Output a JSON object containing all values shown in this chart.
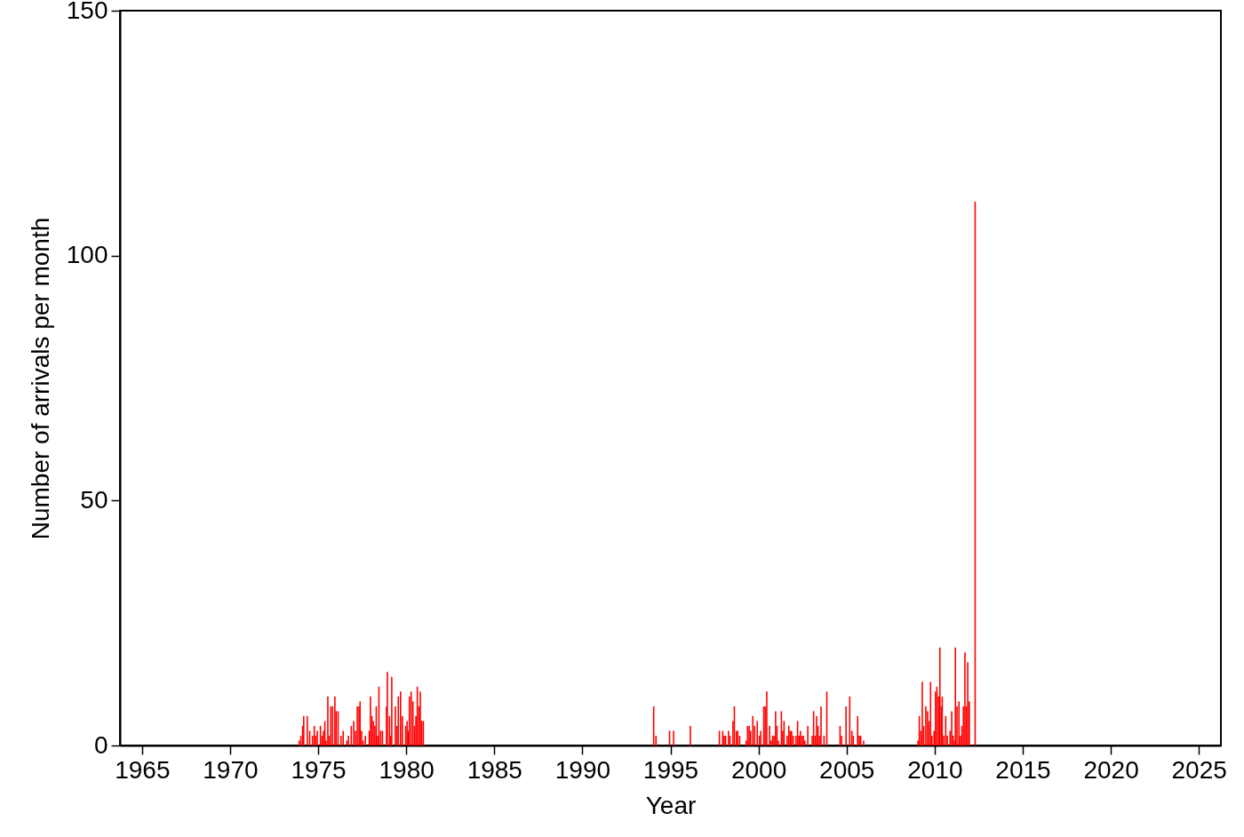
{
  "chart_data": {
    "type": "bar",
    "xlabel": "Year",
    "ylabel": "Number of arrivals per month",
    "xlim": [
      1964,
      2026
    ],
    "xticks": [
      1965,
      1970,
      1975,
      1980,
      1985,
      1990,
      1995,
      2000,
      2005,
      2010,
      2015,
      2020,
      2025
    ],
    "ylim": [
      0,
      150
    ],
    "yticks": [
      0,
      50,
      100,
      150
    ],
    "grid": false,
    "series": [
      {
        "color": "#ff0000",
        "x": [
          1973.92,
          1974.02,
          1974.12,
          1974.18,
          1974.38,
          1974.52,
          1974.68,
          1974.78,
          1974.85,
          1974.95,
          1975.13,
          1975.22,
          1975.3,
          1975.38,
          1975.45,
          1975.55,
          1975.63,
          1975.72,
          1975.82,
          1975.95,
          1976.02,
          1976.13,
          1976.3,
          1976.42,
          1976.63,
          1976.72,
          1976.88,
          1977.02,
          1977.12,
          1977.22,
          1977.32,
          1977.38,
          1977.47,
          1977.55,
          1977.68,
          1977.9,
          1977.97,
          1978.05,
          1978.13,
          1978.22,
          1978.3,
          1978.38,
          1978.45,
          1978.55,
          1978.65,
          1978.88,
          1978.93,
          1979.05,
          1979.12,
          1979.18,
          1979.38,
          1979.47,
          1979.55,
          1979.68,
          1979.78,
          1979.97,
          1980.05,
          1980.13,
          1980.18,
          1980.28,
          1980.38,
          1980.47,
          1980.55,
          1980.63,
          1980.72,
          1980.8,
          1980.88,
          1980.97,
          1994.05,
          1994.18,
          1994.95,
          1995.18,
          1996.13,
          1997.78,
          1997.97,
          1998.05,
          1998.13,
          1998.3,
          1998.38,
          1998.55,
          1998.63,
          1998.75,
          1998.82,
          1998.93,
          1999.3,
          1999.38,
          1999.47,
          1999.55,
          1999.68,
          1999.78,
          1999.93,
          2000.05,
          2000.13,
          2000.3,
          2000.38,
          2000.47,
          2000.63,
          2000.72,
          2000.8,
          2000.88,
          2000.97,
          2001.05,
          2001.13,
          2001.3,
          2001.38,
          2001.45,
          2001.63,
          2001.72,
          2001.8,
          2001.88,
          2001.97,
          2002.13,
          2002.22,
          2002.3,
          2002.38,
          2002.47,
          2002.55,
          2002.63,
          2002.8,
          2003.05,
          2003.13,
          2003.22,
          2003.3,
          2003.38,
          2003.47,
          2003.55,
          2003.72,
          2003.88,
          2004.63,
          2004.72,
          2004.97,
          2005.18,
          2005.3,
          2005.38,
          2005.63,
          2005.72,
          2005.8,
          2005.97,
          2009.05,
          2009.13,
          2009.22,
          2009.3,
          2009.38,
          2009.5,
          2009.6,
          2009.68,
          2009.77,
          2009.85,
          2009.97,
          2010.05,
          2010.13,
          2010.22,
          2010.3,
          2010.38,
          2010.43,
          2010.52,
          2010.63,
          2010.72,
          2010.88,
          2010.97,
          2011.05,
          2011.13,
          2011.18,
          2011.27,
          2011.38,
          2011.47,
          2011.55,
          2011.63,
          2011.72,
          2011.8,
          2011.88,
          2011.97,
          2012.3
        ],
        "values": [
          1,
          2,
          4,
          6,
          6,
          3,
          2,
          4,
          2,
          3,
          4,
          2,
          3,
          5,
          1,
          10,
          2,
          8,
          8,
          10,
          7,
          7,
          2,
          3,
          1,
          2,
          4,
          5,
          3,
          8,
          8,
          9,
          3,
          1,
          2,
          3,
          10,
          6,
          5,
          4,
          8,
          2,
          12,
          3,
          3,
          8,
          15,
          6,
          2,
          14,
          8,
          4,
          10,
          11,
          6,
          4,
          5,
          3,
          10,
          11,
          9,
          4,
          6,
          12,
          8,
          11,
          5,
          5,
          8,
          2,
          3,
          3,
          4,
          3,
          3,
          2,
          2,
          3,
          2,
          5,
          8,
          3,
          3,
          2,
          1,
          4,
          4,
          3,
          6,
          4,
          5,
          2,
          3,
          8,
          8,
          11,
          4,
          1,
          2,
          2,
          7,
          4,
          1,
          7,
          3,
          5,
          2,
          4,
          3,
          3,
          2,
          2,
          5,
          2,
          3,
          2,
          2,
          1,
          4,
          2,
          7,
          2,
          6,
          4,
          2,
          8,
          2,
          11,
          4,
          2,
          8,
          10,
          3,
          2,
          6,
          2,
          2,
          1,
          1,
          6,
          3,
          13,
          4,
          8,
          7,
          5,
          13,
          2,
          3,
          11,
          12,
          10,
          20,
          8,
          10,
          2,
          6,
          2,
          3,
          7,
          2,
          1,
          20,
          8,
          9,
          2,
          4,
          8,
          19,
          8,
          17,
          9,
          111
        ]
      }
    ]
  }
}
